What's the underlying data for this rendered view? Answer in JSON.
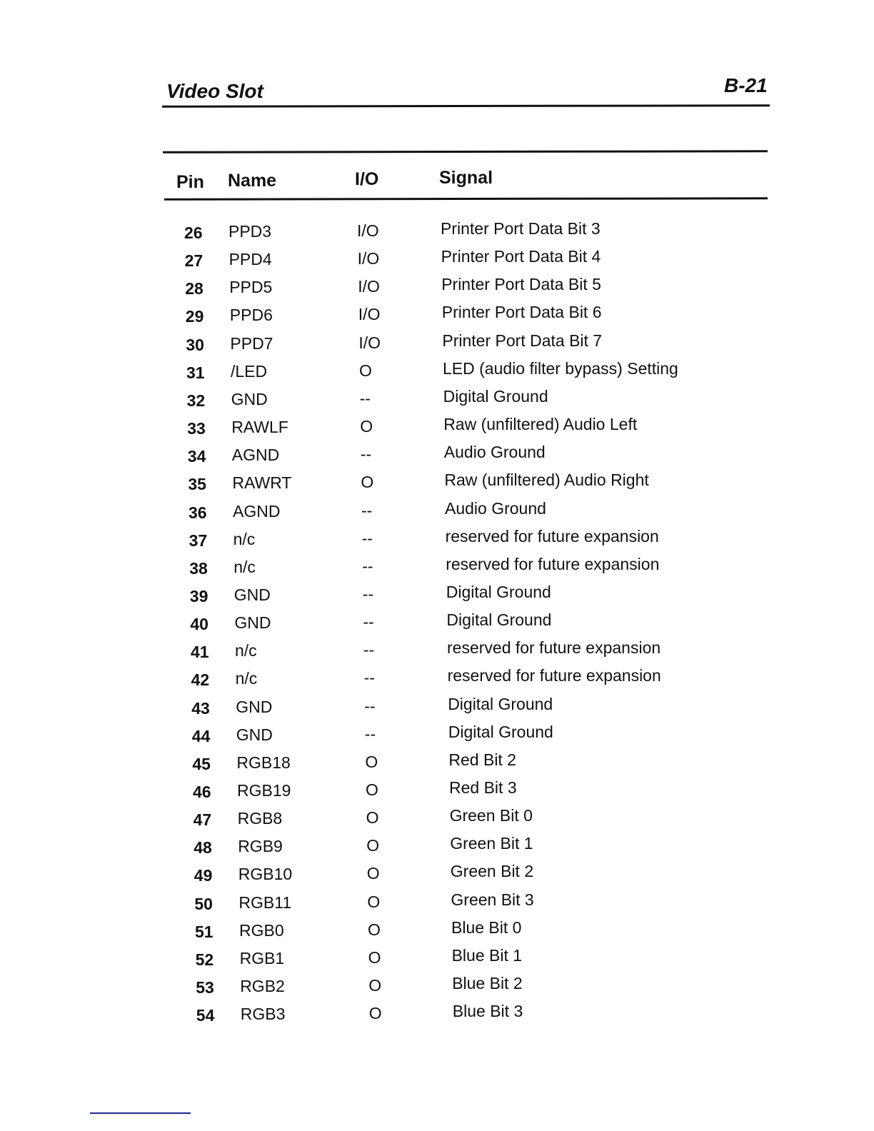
{
  "header": {
    "title": "Video Slot",
    "page_number": "B-21"
  },
  "table": {
    "columns": [
      "Pin",
      "Name",
      "I/O",
      "Signal"
    ],
    "rows": [
      {
        "pin": "26",
        "name": "PPD3",
        "io": "I/O",
        "signal": "Printer Port Data Bit 3"
      },
      {
        "pin": "27",
        "name": "PPD4",
        "io": "I/O",
        "signal": "Printer Port Data Bit 4"
      },
      {
        "pin": "28",
        "name": "PPD5",
        "io": "I/O",
        "signal": "Printer Port Data Bit 5"
      },
      {
        "pin": "29",
        "name": "PPD6",
        "io": "I/O",
        "signal": "Printer Port Data Bit 6"
      },
      {
        "pin": "30",
        "name": "PPD7",
        "io": "I/O",
        "signal": "Printer Port Data Bit 7"
      },
      {
        "pin": "31",
        "name": "/LED",
        "io": "O",
        "signal": "LED (audio filter bypass) Setting"
      },
      {
        "pin": "32",
        "name": "GND",
        "io": "--",
        "signal": "Digital Ground"
      },
      {
        "pin": "33",
        "name": "RAWLF",
        "io": "O",
        "signal": "Raw (unfiltered) Audio Left"
      },
      {
        "pin": "34",
        "name": "AGND",
        "io": "--",
        "signal": "Audio Ground"
      },
      {
        "pin": "35",
        "name": "RAWRT",
        "io": "O",
        "signal": "Raw (unfiltered) Audio Right"
      },
      {
        "pin": "36",
        "name": "AGND",
        "io": "--",
        "signal": "Audio Ground"
      },
      {
        "pin": "37",
        "name": "n/c",
        "io": "--",
        "signal": "reserved for future expansion"
      },
      {
        "pin": "38",
        "name": "n/c",
        "io": "--",
        "signal": "reserved for future expansion"
      },
      {
        "pin": "39",
        "name": "GND",
        "io": "--",
        "signal": "Digital Ground"
      },
      {
        "pin": "40",
        "name": "GND",
        "io": "--",
        "signal": "Digital Ground"
      },
      {
        "pin": "41",
        "name": "n/c",
        "io": "--",
        "signal": "reserved for future expansion"
      },
      {
        "pin": "42",
        "name": "n/c",
        "io": "--",
        "signal": "reserved for future expansion"
      },
      {
        "pin": "43",
        "name": "GND",
        "io": "--",
        "signal": "Digital Ground"
      },
      {
        "pin": "44",
        "name": "GND",
        "io": "--",
        "signal": "Digital Ground"
      },
      {
        "pin": "45",
        "name": "RGB18",
        "io": "O",
        "signal": "Red Bit 2"
      },
      {
        "pin": "46",
        "name": "RGB19",
        "io": "O",
        "signal": "Red Bit 3"
      },
      {
        "pin": "47",
        "name": "RGB8",
        "io": "O",
        "signal": "Green Bit 0"
      },
      {
        "pin": "48",
        "name": "RGB9",
        "io": "O",
        "signal": "Green Bit 1"
      },
      {
        "pin": "49",
        "name": "RGB10",
        "io": "O",
        "signal": "Green Bit 2"
      },
      {
        "pin": "50",
        "name": "RGB11",
        "io": "O",
        "signal": "Green Bit 3"
      },
      {
        "pin": "51",
        "name": "RGB0",
        "io": "O",
        "signal": "Blue Bit 0"
      },
      {
        "pin": "52",
        "name": "RGB1",
        "io": "O",
        "signal": "Blue Bit 1"
      },
      {
        "pin": "53",
        "name": "RGB2",
        "io": "O",
        "signal": "Blue Bit 2"
      },
      {
        "pin": "54",
        "name": "RGB3",
        "io": "O",
        "signal": "Blue Bit 3"
      }
    ]
  }
}
